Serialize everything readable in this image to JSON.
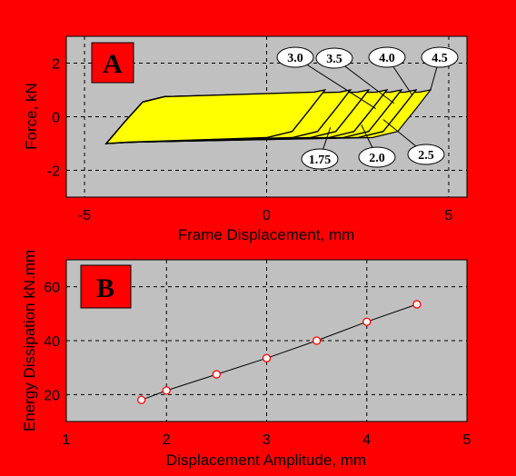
{
  "chart_data": [
    {
      "type": "line",
      "panel_label": "A",
      "xlabel": "Frame Displacement, mm",
      "ylabel": "Force, kN",
      "xlim": [
        -5.5,
        5.5
      ],
      "ylim": [
        -3,
        3
      ],
      "xticks": [
        -5,
        0,
        5
      ],
      "yticks": [
        -2,
        0,
        2
      ],
      "grid": true,
      "loop_fill_color": "#ffff00",
      "plot_bg_color": "#c0c0c0",
      "amplitude_labels": [
        "3.0",
        "3.5",
        "4.0",
        "4.5",
        "1.75",
        "2.0",
        "2.5"
      ],
      "loops": [
        {
          "amplitude": 1.75,
          "left_x": -4.4,
          "right_x": 1.6
        },
        {
          "amplitude": 2.0,
          "left_x": -4.4,
          "right_x": 2.3
        },
        {
          "amplitude": 2.5,
          "left_x": -4.4,
          "right_x": 2.8
        },
        {
          "amplitude": 3.0,
          "left_x": -4.4,
          "right_x": 3.3
        },
        {
          "amplitude": 3.5,
          "left_x": -4.4,
          "right_x": 3.7
        },
        {
          "amplitude": 4.0,
          "left_x": -4.4,
          "right_x": 4.1
        },
        {
          "amplitude": 4.5,
          "left_x": -4.4,
          "right_x": 4.5
        }
      ],
      "force_peak": 1.0
    },
    {
      "type": "line",
      "panel_label": "B",
      "xlabel": "Displacement Amplitude, mm",
      "ylabel": "Energy Dissipation  kN.mm",
      "xlim": [
        1,
        5
      ],
      "ylim": [
        10,
        70
      ],
      "xticks": [
        1,
        2,
        3,
        4,
        5
      ],
      "yticks": [
        20,
        40,
        60
      ],
      "grid": true,
      "marker_color": "#ff0000",
      "series": [
        {
          "x": [
            1.75,
            2.0,
            2.5,
            3.0,
            3.5,
            4.0,
            4.5
          ],
          "y": [
            18,
            21.5,
            27.5,
            33.5,
            40,
            47,
            53.5
          ]
        }
      ]
    }
  ]
}
